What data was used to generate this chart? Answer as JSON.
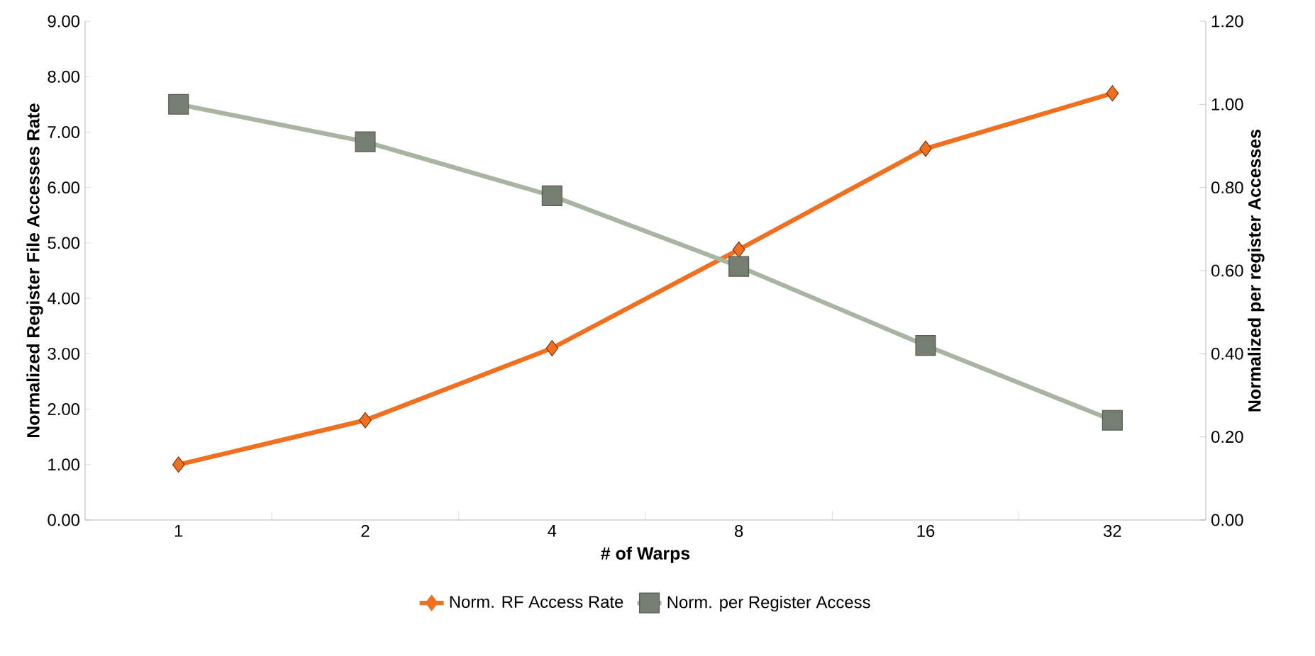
{
  "chart_data": {
    "type": "line",
    "xlabel": "# of Warps",
    "ylabel": "Normalized Register File Accesses Rate",
    "y2label": "Normalized per register Accesses",
    "categories": [
      "1",
      "2",
      "4",
      "8",
      "16",
      "32"
    ],
    "series": [
      {
        "name": "Norm. RF Access Rate",
        "color": "#f07020",
        "marker": "diamond",
        "values": [
          1.0,
          1.8,
          3.1,
          4.88,
          6.7,
          7.7
        ]
      },
      {
        "name": "Norm. per Register Access",
        "color": "#a9b4a2",
        "marker": "square",
        "axis": "y2",
        "values": [
          1.0,
          0.91,
          0.78,
          0.61,
          0.42,
          0.24
        ]
      }
    ],
    "ylim": [
      0,
      9
    ],
    "yticks": [
      {
        "value": 0,
        "label": "0.00"
      },
      {
        "value": 1,
        "label": "1.00"
      },
      {
        "value": 2,
        "label": "2.00"
      },
      {
        "value": 3,
        "label": "3.00"
      },
      {
        "value": 4,
        "label": "4.00"
      },
      {
        "value": 5,
        "label": "5.00"
      },
      {
        "value": 6,
        "label": "6.00"
      },
      {
        "value": 7,
        "label": "7.00"
      },
      {
        "value": 8,
        "label": "8.00"
      },
      {
        "value": 9,
        "label": "9.00"
      }
    ],
    "y2lim": [
      0,
      1.2
    ],
    "y2ticks": [
      {
        "value": 0,
        "label": "0.00"
      },
      {
        "value": 0.2,
        "label": "0.20"
      },
      {
        "value": 0.4,
        "label": "0.40"
      },
      {
        "value": 0.6,
        "label": "0.60"
      },
      {
        "value": 0.8,
        "label": "0.80"
      },
      {
        "value": 1.0,
        "label": "1.00"
      },
      {
        "value": 1.2,
        "label": "1.20"
      }
    ],
    "legend": "bottom",
    "line_style": "solid",
    "grid": false
  }
}
